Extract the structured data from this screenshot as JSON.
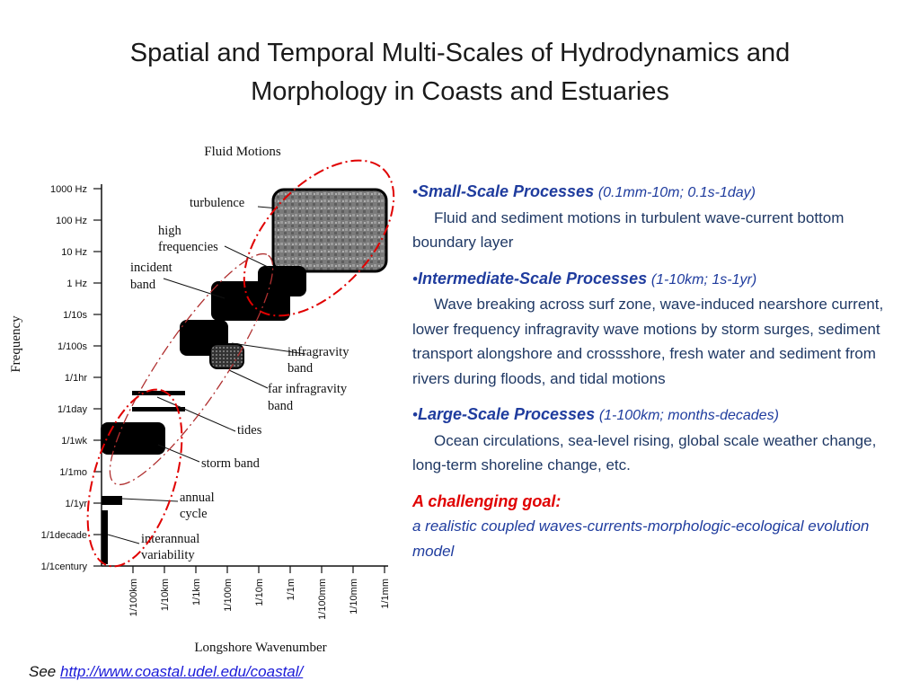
{
  "slide": {
    "title_line1": "Spatial and Temporal Multi-Scales of Hydrodynamics and",
    "title_line2": "Morphology in Coasts and Estuaries"
  },
  "figure": {
    "title": "Fluid Motions",
    "y_axis_label": "Frequency",
    "x_axis_label": "Longshore Wavenumber",
    "y_ticks": [
      "1000 Hz",
      "100 Hz",
      "10 Hz",
      "1 Hz",
      "1/10s",
      "1/100s",
      "1/1hr",
      "1/1day",
      "1/1wk",
      "1/1mo",
      "1/1yr",
      "1/1decade",
      "1/1century"
    ],
    "x_ticks": [
      "1/100km",
      "1/10km",
      "1/1km",
      "1/100m",
      "1/10m",
      "1/1m",
      "1/100mm",
      "1/10mm",
      "1/1mm"
    ],
    "annotations": {
      "turbulence": "turbulence",
      "high_1": "high",
      "high_2": "frequencies",
      "incident_1": "incident",
      "incident_2": "band",
      "infragravity_1": "infragravity",
      "infragravity_2": "band",
      "far_infragravity_1": "far infragravity",
      "far_infragravity_2": "band",
      "tides": "tides",
      "storm_band": "storm band",
      "annual_1": "annual",
      "annual_2": "cycle",
      "interannual_1": "interannual",
      "interannual_2": "variability"
    },
    "colors": {
      "scale_ellipse": "#e00000",
      "intermediate_ellipse": "#b03030",
      "blocks": "#000000"
    }
  },
  "bullets": [
    {
      "name": "Small-Scale Processes",
      "range": "(0.1mm-10m; 0.1s-1day)",
      "body": "Fluid and sediment motions in turbulent wave-current bottom boundary layer"
    },
    {
      "name": "Intermediate-Scale Processes",
      "range": "(1-10km; 1s-1yr)",
      "body": "Wave breaking across surf zone, wave-induced nearshore current, lower frequency infragravity wave motions by storm surges, sediment transport alongshore and crossshore, fresh water and sediment from rivers during floods, and tidal motions"
    },
    {
      "name": "Large-Scale Processes",
      "range": "(1-100km; months-decades)",
      "body": "Ocean circulations, sea-level rising, global scale weather change, long-term shoreline change, etc."
    }
  ],
  "bullet_symbol": "•",
  "goal": {
    "title": "A challenging goal:",
    "text": "a realistic coupled waves-currents-morphologic-ecological evolution model"
  },
  "footer": {
    "see_label": "See",
    "link_text": "http://www.coastal.udel.edu/coastal/"
  }
}
